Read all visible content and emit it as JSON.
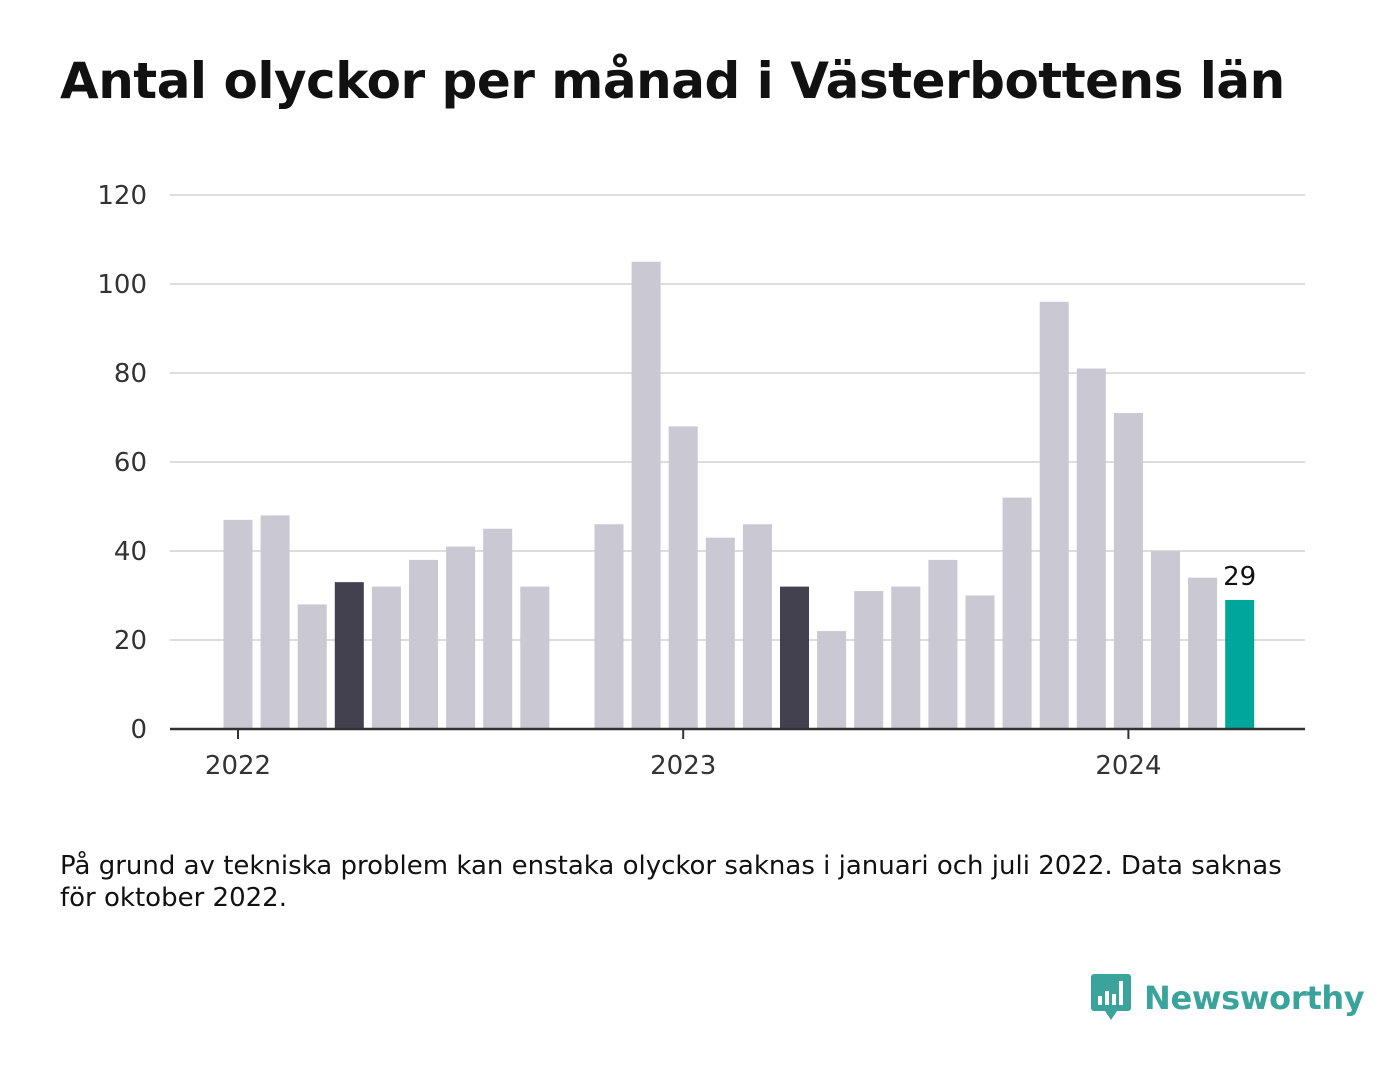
{
  "title": "Antal olyckor per månad i Västerbottens län",
  "note": "På grund av tekniska problem kan enstaka olyckor saknas i januari och juli 2022. Data saknas för oktober 2022.",
  "brand": {
    "name": "Newsworthy",
    "icon": "newsworthy-logo-icon",
    "color": "#3aa39b"
  },
  "colors": {
    "default": "#c9c8d3",
    "highlight": "#43404f",
    "latest": "#00a69a",
    "grid": "#dddddd",
    "axis": "#333333"
  },
  "chart_data": {
    "type": "bar",
    "title": "Antal olyckor per månad i Västerbottens län",
    "ylim": [
      0,
      120
    ],
    "yticks": [
      0,
      20,
      40,
      60,
      80,
      100,
      120
    ],
    "xtick_labels": [
      {
        "label": "2022",
        "month": "2022-01"
      },
      {
        "label": "2023",
        "month": "2023-01"
      },
      {
        "label": "2024",
        "month": "2024-01"
      }
    ],
    "grid": true,
    "categories": [
      "2022-01",
      "2022-02",
      "2022-03",
      "2022-04",
      "2022-05",
      "2022-06",
      "2022-07",
      "2022-08",
      "2022-09",
      "2022-10",
      "2022-11",
      "2022-12",
      "2023-01",
      "2023-02",
      "2023-03",
      "2023-04",
      "2023-05",
      "2023-06",
      "2023-07",
      "2023-08",
      "2023-09",
      "2023-10",
      "2023-11",
      "2023-12",
      "2024-01",
      "2024-02",
      "2024-03",
      "2024-04"
    ],
    "values": [
      47,
      48,
      28,
      33,
      32,
      38,
      41,
      45,
      32,
      null,
      46,
      105,
      68,
      43,
      46,
      32,
      22,
      31,
      32,
      38,
      30,
      52,
      96,
      81,
      71,
      40,
      34,
      29
    ],
    "highlighted": [
      "2022-04",
      "2023-04"
    ],
    "latest": "2024-04",
    "annotations": [
      {
        "month": "2024-04",
        "text": "29"
      }
    ]
  }
}
